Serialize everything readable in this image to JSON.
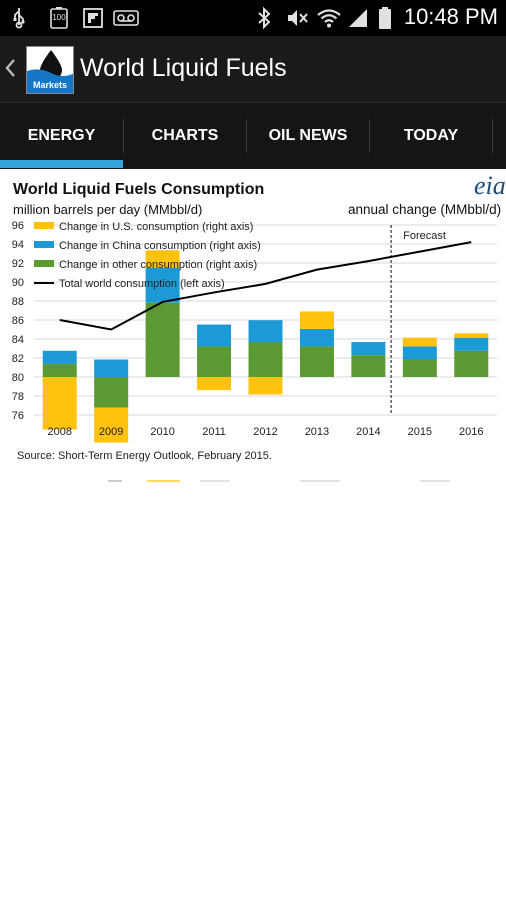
{
  "status_bar": {
    "time": "10:48 PM",
    "battery_level": "100"
  },
  "action_bar": {
    "app_logo_label": "Markets",
    "title": "World Liquid Fuels"
  },
  "tabs": [
    {
      "label": "ENERGY",
      "selected": true
    },
    {
      "label": "CHARTS",
      "selected": false
    },
    {
      "label": "OIL NEWS",
      "selected": false
    },
    {
      "label": "TODAY",
      "selected": false
    }
  ],
  "chart": {
    "source": "Short-Term Energy Outlook, February 2015.",
    "source_prefix": "Source:",
    "logo_text": "eia"
  },
  "colors": {
    "us": "#ffc20e",
    "china": "#1c9ad6",
    "other": "#5b9a32",
    "total": "#000000",
    "tab_indicator": "#33a4dd"
  },
  "chart_data": {
    "type": "bar",
    "title": "World Liquid Fuels Consumption",
    "ylabel_left": "million barrels per day (MMbbl/d)",
    "ylabel_right": "annual change (MMbbl/d)",
    "categories": [
      "2008",
      "2009",
      "2010",
      "2011",
      "2012",
      "2013",
      "2014",
      "2015",
      "2016"
    ],
    "ylim_left": [
      76,
      96
    ],
    "yticks_left": [
      "96",
      "94",
      "92",
      "90",
      "88",
      "86",
      "84",
      "82",
      "80",
      "78",
      "76"
    ],
    "legend": [
      "Change in U.S. consumption (right axis)",
      "Change in China consumption (right axis)",
      "Change in other consumption (right axis)",
      "Total world consumption (left axis)"
    ],
    "annotation": "Forecast",
    "forecast_start": "2015",
    "grid": true,
    "series": [
      {
        "name": "Change in U.S. consumption (right axis)",
        "stack_type": "bar",
        "values": [
          -1.2,
          -0.8,
          0.4,
          -0.3,
          -0.4,
          0.4,
          0.0,
          0.2,
          0.1
        ]
      },
      {
        "name": "Change in China consumption (right axis)",
        "stack_type": "bar",
        "values": [
          0.3,
          0.4,
          0.8,
          0.5,
          0.5,
          0.4,
          0.3,
          0.3,
          0.3
        ]
      },
      {
        "name": "Change in other consumption (right axis)",
        "stack_type": "bar",
        "values": [
          0.3,
          -0.7,
          1.7,
          0.7,
          0.8,
          0.7,
          0.5,
          0.4,
          0.6
        ]
      },
      {
        "name": "Total world consumption (left axis)",
        "stack_type": "line",
        "values": [
          86.0,
          85.0,
          87.9,
          88.9,
          89.8,
          91.3,
          92.2,
          93.2,
          94.2
        ]
      }
    ]
  }
}
